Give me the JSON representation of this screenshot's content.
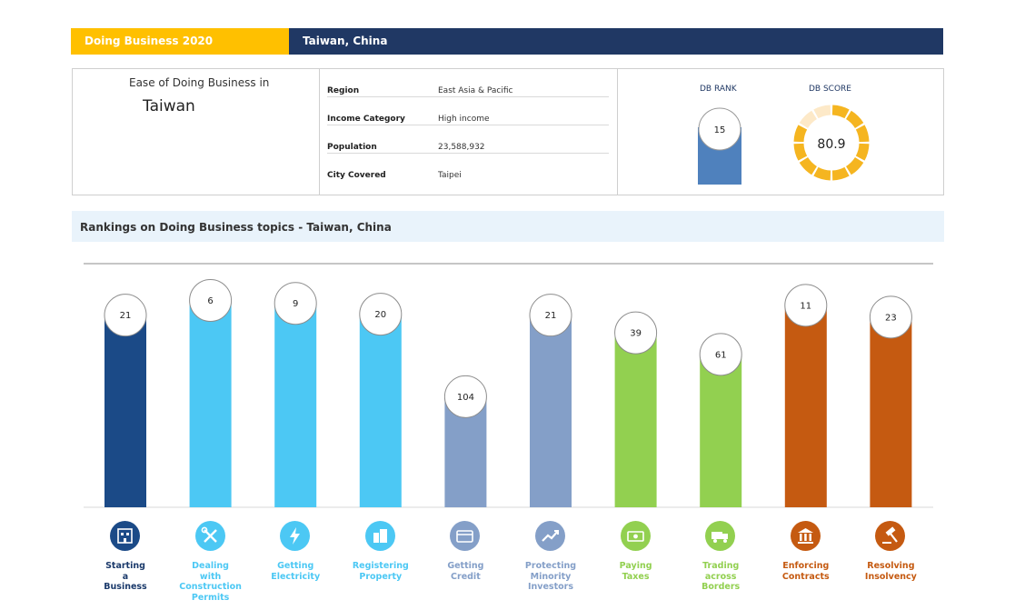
{
  "banner": {
    "left": "Doing Business  2020",
    "right": "Taiwan, China"
  },
  "info": {
    "ease_label": "Ease of Doing Business in",
    "ease_country": "Taiwan",
    "rows": [
      {
        "key": "Region",
        "value": "East Asia & Pacific"
      },
      {
        "key": "Income Category",
        "value": "High income"
      },
      {
        "key": "Population",
        "value": "23,588,932"
      },
      {
        "key": "City Covered",
        "value": "Taipei"
      }
    ],
    "rank_title": "DB RANK",
    "score_title": "DB SCORE",
    "db_rank": "15",
    "db_score": "80.9",
    "db_score_value": 80.9
  },
  "section_title": "Rankings on Doing Business topics - Taiwan, China",
  "colors": {
    "banner_left": "#ffc000",
    "banner_right": "#203864",
    "rank_bar": "#4f81bd",
    "score_ring": "#f5b520",
    "score_ring_track": "#fde9c8"
  },
  "chart_data": {
    "type": "bar",
    "title": "",
    "xlabel": "",
    "ylabel": "",
    "ylim": [
      0,
      190
    ],
    "categories": [
      "Starting a Business",
      "Dealing with Construction Permits",
      "Getting Electricity",
      "Registering Property",
      "Getting Credit",
      "Protecting Minority Investors",
      "Paying Taxes",
      "Trading across Borders",
      "Enforcing Contracts",
      "Resolving Insolvency"
    ],
    "values": [
      21,
      6,
      9,
      20,
      104,
      21,
      39,
      61,
      11,
      23
    ],
    "bar_colors": [
      "#1b4a87",
      "#4cc8f4",
      "#4cc8f4",
      "#4cc8f4",
      "#849fc8",
      "#849fc8",
      "#92d050",
      "#92d050",
      "#c55a11",
      "#c55a11"
    ],
    "label_colors": [
      "#1b3a6b",
      "#4cc8f4",
      "#4cc8f4",
      "#4cc8f4",
      "#849fc8",
      "#849fc8",
      "#92d050",
      "#92d050",
      "#c55a11",
      "#c55a11"
    ],
    "icons": [
      "building-icon",
      "tools-icon",
      "lightning-icon",
      "city-icon",
      "credit-card-icon",
      "trend-up-icon",
      "money-icon",
      "truck-icon",
      "courthouse-icon",
      "gavel-icon"
    ],
    "label_lines": [
      [
        "Starting",
        "a",
        "Business"
      ],
      [
        "Dealing",
        "with",
        "Construction",
        "Permits"
      ],
      [
        "Getting",
        "Electricity"
      ],
      [
        "Registering",
        "Property"
      ],
      [
        "Getting",
        "Credit"
      ],
      [
        "Protecting",
        "Minority",
        "Investors"
      ],
      [
        "Paying",
        "Taxes"
      ],
      [
        "Trading",
        "across",
        "Borders"
      ],
      [
        "Enforcing",
        "Contracts"
      ],
      [
        "Resolving",
        "Insolvency"
      ]
    ]
  }
}
